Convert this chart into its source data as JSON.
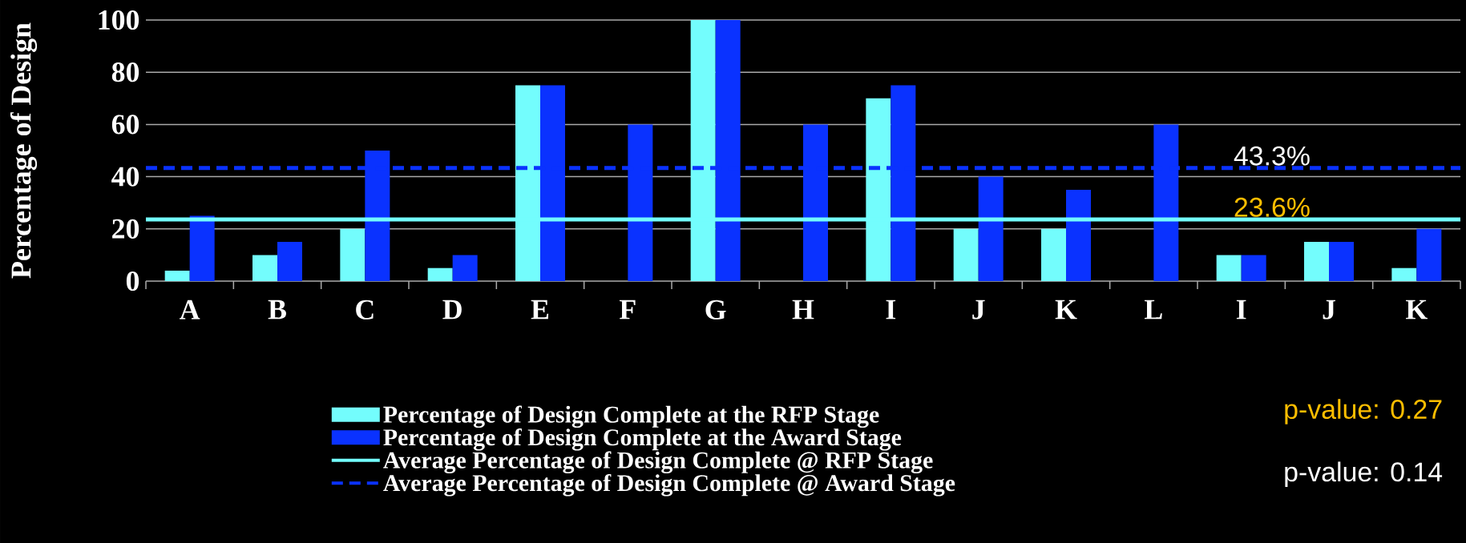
{
  "chart_data": {
    "type": "bar",
    "ylabel": "Percentage of Design",
    "categories": [
      "A",
      "B",
      "C",
      "D",
      "E",
      "F",
      "G",
      "H",
      "I",
      "J",
      "K",
      "L",
      "I",
      "J",
      "K"
    ],
    "series": [
      {
        "name": "Percentage of Design Complete at the RFP Stage",
        "color": "#73fdfd",
        "values": [
          4,
          10,
          20,
          5,
          75,
          0,
          100,
          0,
          70,
          20,
          20,
          0,
          10,
          15,
          5
        ]
      },
      {
        "name": "Percentage of Design Complete at the Award Stage",
        "color": "#0a32ff",
        "values": [
          25,
          15,
          50,
          10,
          75,
          60,
          100,
          60,
          75,
          40,
          35,
          60,
          10,
          15,
          20
        ]
      }
    ],
    "ylim": [
      0,
      100
    ],
    "yticks": [
      0,
      20,
      40,
      60,
      80,
      100
    ],
    "grid": "y",
    "legend": "bottom",
    "ref_lines": [
      {
        "axis": "y",
        "value": 23.6,
        "label": "Average Percentage of Design Complete @ RFP Stage",
        "color": "#73fdfd",
        "line_style": "solid"
      },
      {
        "axis": "y",
        "value": 43.3,
        "label": "Average Percentage of Design Complete @ Award Stage",
        "color": "#0a32ff",
        "line_style": "dashed"
      }
    ],
    "annotations": [
      {
        "text": "43.3%",
        "y": 43.3
      },
      {
        "text": "23.6%",
        "y": 23.6
      },
      "p-value: 0.27",
      "p-value: 0.14"
    ]
  }
}
